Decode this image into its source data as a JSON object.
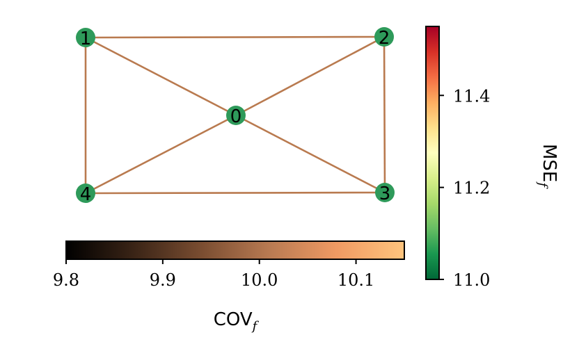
{
  "graph": {
    "nodes": [
      {
        "id": "0",
        "color": "#2e9a5a"
      },
      {
        "id": "1",
        "color": "#2e9a5a"
      },
      {
        "id": "2",
        "color": "#2e9a5a"
      },
      {
        "id": "3",
        "color": "#2e9a5a"
      },
      {
        "id": "4",
        "color": "#2e9a5a"
      }
    ],
    "edges": [
      [
        "1",
        "2"
      ],
      [
        "1",
        "0"
      ],
      [
        "1",
        "4"
      ],
      [
        "2",
        "0"
      ],
      [
        "2",
        "3"
      ],
      [
        "0",
        "3"
      ],
      [
        "0",
        "4"
      ],
      [
        "4",
        "3"
      ]
    ],
    "edge_color": "#b97a4f"
  },
  "colorbar_right": {
    "label_main": "MSE",
    "label_sub": "f",
    "cmap": [
      "#006837",
      "#1a9850",
      "#66bd63",
      "#a6d96a",
      "#d9ef8b",
      "#ffffbf",
      "#fee08b",
      "#fdae61",
      "#f46d43",
      "#d73027",
      "#a50026"
    ],
    "range": [
      11.0,
      11.55
    ],
    "ticks": [
      {
        "value": 11.0,
        "label": "11.0"
      },
      {
        "value": 11.2,
        "label": "11.2"
      },
      {
        "value": 11.4,
        "label": "11.4"
      }
    ]
  },
  "colorbar_bottom": {
    "label_main": "COV",
    "label_sub": "f",
    "cmap": [
      "#000000",
      "#3a2416",
      "#7a4d31",
      "#b87a52",
      "#f09a63",
      "#ffc47d"
    ],
    "range": [
      9.8,
      10.15
    ],
    "ticks": [
      {
        "value": 9.8,
        "label": "9.8"
      },
      {
        "value": 9.9,
        "label": "9.9"
      },
      {
        "value": 10.0,
        "label": "10.0"
      },
      {
        "value": 10.1,
        "label": "10.1"
      }
    ]
  }
}
